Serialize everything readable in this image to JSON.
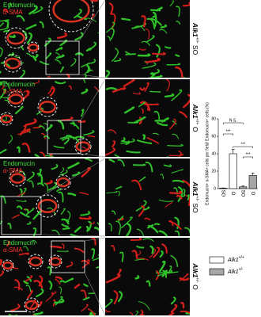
{
  "panels": [
    {
      "stain_green": "Endomucin",
      "stain_red": "α-SMA",
      "gene": "Alk1",
      "genotype": "+/+",
      "condition": "SO"
    },
    {
      "stain_green": "Endomucin",
      "stain_red": "α-SMA",
      "gene": "Alk1",
      "genotype": "+/+",
      "condition": "O"
    },
    {
      "stain_green": "Endomucin",
      "stain_red": "α-SMA",
      "gene": "Alk1",
      "genotype": "+/-",
      "condition": "SO"
    },
    {
      "stain_green": "Endomucin",
      "stain_red": "α-SMA",
      "gene": "Alk1",
      "genotype": "+/-",
      "condition": "O"
    }
  ],
  "chart_data": {
    "type": "bar",
    "y_label": "Endomucin+ α-SMA+ cells per field/ Endomucin+ cells (%)",
    "ylim": [
      0,
      80
    ],
    "yticks": [
      0,
      20,
      40,
      60,
      80
    ],
    "series": [
      {
        "name": "+/+",
        "gene": "Alk1",
        "color": "#ffffff",
        "categories": [
          "SO",
          "O"
        ],
        "values": [
          0.5,
          40
        ],
        "errors": [
          0.3,
          5
        ]
      },
      {
        "name": "+/-",
        "gene": "Alk1",
        "color": "#a6a6a6",
        "categories": [
          "SO",
          "O"
        ],
        "values": [
          2,
          15
        ],
        "errors": [
          1,
          3
        ]
      }
    ],
    "annotations": [
      {
        "text": "N.S.",
        "from": [
          0,
          0
        ],
        "to": [
          1,
          0
        ]
      },
      {
        "text": "***",
        "from": [
          0,
          0
        ],
        "to": [
          0,
          1
        ]
      },
      {
        "text": "***",
        "from": [
          0,
          1
        ],
        "to": [
          1,
          1
        ]
      },
      {
        "text": "***",
        "from": [
          1,
          0
        ],
        "to": [
          1,
          1
        ]
      }
    ]
  }
}
